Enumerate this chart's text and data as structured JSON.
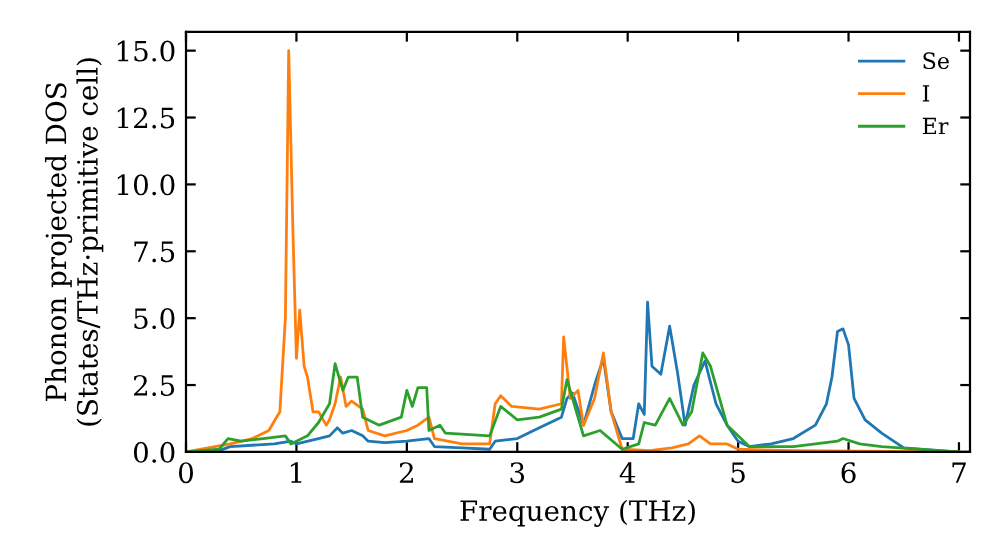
{
  "chart_data": {
    "type": "line",
    "xlabel": "Frequency (THz)",
    "ylabel": "Phonon projected DOS\n(States/THz·primitive cell)",
    "xlim": [
      0,
      7.1
    ],
    "ylim": [
      0,
      15.7
    ],
    "xticks": [
      0,
      1,
      2,
      3,
      4,
      5,
      6,
      7
    ],
    "yticks": [
      {
        "value": 0,
        "label": "0.0"
      },
      {
        "value": 2.5,
        "label": "2.5"
      },
      {
        "value": 5,
        "label": "5.0"
      },
      {
        "value": 7.5,
        "label": "7.5"
      },
      {
        "value": 10,
        "label": "10.0"
      },
      {
        "value": 12.5,
        "label": "12.5"
      },
      {
        "value": 15,
        "label": "15.0"
      }
    ],
    "legend": "top right",
    "grid": false,
    "marker": "none",
    "line_style": "solid",
    "series": [
      {
        "name": "Se",
        "color": "#1f77b4",
        "x": [
          0,
          0.3,
          0.4,
          0.8,
          0.95,
          1.0,
          1.2,
          1.3,
          1.37,
          1.42,
          1.5,
          1.6,
          1.65,
          1.8,
          2.0,
          2.2,
          2.25,
          2.5,
          2.75,
          2.8,
          3.0,
          3.2,
          3.4,
          3.45,
          3.5,
          3.6,
          3.7,
          3.78,
          3.85,
          3.95,
          4.05,
          4.1,
          4.15,
          4.18,
          4.22,
          4.3,
          4.38,
          4.45,
          4.52,
          4.6,
          4.7,
          4.8,
          4.9,
          5.0,
          5.1,
          5.3,
          5.5,
          5.7,
          5.8,
          5.85,
          5.9,
          5.95,
          6.0,
          6.05,
          6.15,
          6.3,
          6.5,
          7.0
        ],
        "values": [
          0,
          0.05,
          0.2,
          0.3,
          0.4,
          0.3,
          0.5,
          0.6,
          0.9,
          0.7,
          0.8,
          0.6,
          0.4,
          0.35,
          0.4,
          0.5,
          0.2,
          0.15,
          0.1,
          0.4,
          0.5,
          0.9,
          1.3,
          2.0,
          2.2,
          1.0,
          2.5,
          3.5,
          1.5,
          0.5,
          0.5,
          1.8,
          1.4,
          5.6,
          3.2,
          2.9,
          4.7,
          3.0,
          1.0,
          2.5,
          3.4,
          1.8,
          1.0,
          0.4,
          0.2,
          0.3,
          0.5,
          1.0,
          1.8,
          2.8,
          4.5,
          4.6,
          4.0,
          2.0,
          1.2,
          0.7,
          0.15,
          0
        ]
      },
      {
        "name": "I",
        "color": "#ff7f0e",
        "x": [
          0,
          0.4,
          0.6,
          0.75,
          0.85,
          0.9,
          0.93,
          0.97,
          1.0,
          1.03,
          1.07,
          1.1,
          1.15,
          1.2,
          1.27,
          1.3,
          1.35,
          1.4,
          1.45,
          1.5,
          1.6,
          1.65,
          1.8,
          2.0,
          2.1,
          2.2,
          2.25,
          2.5,
          2.75,
          2.8,
          2.85,
          2.95,
          3.2,
          3.4,
          3.42,
          3.48,
          3.55,
          3.6,
          3.7,
          3.78,
          3.85,
          3.95,
          4.2,
          4.4,
          4.55,
          4.65,
          4.75,
          4.9,
          5.0,
          5.5,
          7.0
        ],
        "values": [
          0,
          0.3,
          0.5,
          0.8,
          1.5,
          5,
          15.0,
          8,
          3.5,
          5.3,
          3.2,
          2.8,
          1.5,
          1.5,
          1.0,
          1.2,
          1.8,
          2.8,
          1.7,
          1.9,
          1.6,
          0.8,
          0.6,
          0.8,
          1.0,
          1.3,
          0.5,
          0.3,
          0.3,
          1.8,
          2.1,
          1.7,
          1.6,
          1.8,
          4.3,
          2.0,
          2.3,
          1.0,
          2.0,
          3.7,
          1.5,
          0.1,
          0.05,
          0.15,
          0.3,
          0.6,
          0.3,
          0.3,
          0.1,
          0.05,
          0
        ]
      },
      {
        "name": "Er",
        "color": "#2ca02c",
        "x": [
          0,
          0.3,
          0.38,
          0.5,
          0.7,
          0.9,
          0.95,
          1.1,
          1.2,
          1.3,
          1.35,
          1.42,
          1.47,
          1.55,
          1.6,
          1.75,
          1.95,
          2.0,
          2.05,
          2.1,
          2.18,
          2.2,
          2.3,
          2.35,
          2.75,
          2.85,
          3.0,
          3.2,
          3.4,
          3.45,
          3.5,
          3.6,
          3.75,
          3.95,
          4.1,
          4.15,
          4.25,
          4.38,
          4.5,
          4.58,
          4.68,
          4.75,
          4.9,
          5.0,
          5.1,
          5.5,
          5.9,
          5.95,
          6.1,
          6.3,
          7.0
        ],
        "values": [
          0,
          0.1,
          0.5,
          0.4,
          0.5,
          0.6,
          0.3,
          0.6,
          1.1,
          1.8,
          3.3,
          2.3,
          2.8,
          2.8,
          1.3,
          1.0,
          1.3,
          2.3,
          1.7,
          2.4,
          2.4,
          0.8,
          1.0,
          0.7,
          0.6,
          1.7,
          1.2,
          1.3,
          1.6,
          2.7,
          2.0,
          0.6,
          0.8,
          0.1,
          0.3,
          1.1,
          1.0,
          2.0,
          1.0,
          1.5,
          3.7,
          3.2,
          1.0,
          0.6,
          0.2,
          0.2,
          0.4,
          0.5,
          0.3,
          0.2,
          0
        ]
      }
    ]
  }
}
